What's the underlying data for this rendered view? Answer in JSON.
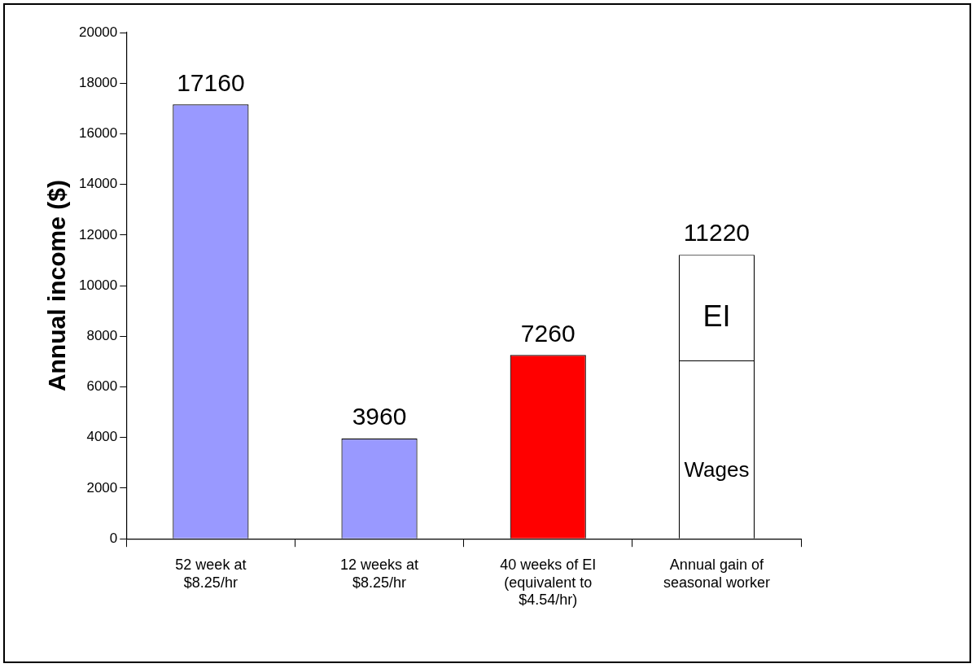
{
  "chart_data": {
    "type": "bar",
    "ylabel": "Annual income ($)",
    "categories": [
      "52 week at $8.25/hr",
      "12 weeks at $8.25/hr",
      "40 weeks of EI (equivalent to $4.54/hr)",
      "Annual gain of seasonal worker"
    ],
    "stacked": true,
    "series": [
      {
        "colors": [
          "#9999ff",
          "#9999ff",
          "#ff0000",
          "#ffffff"
        ],
        "values": [
          17160,
          3960,
          7260,
          7050
        ]
      },
      {
        "color": "#ffffff",
        "values": [
          null,
          null,
          null,
          4170
        ]
      }
    ],
    "totals": [
      "17160",
      "3960",
      "7260",
      "11220"
    ],
    "annotations": [
      "EI",
      "Wages"
    ],
    "ylim": [
      0,
      20000
    ],
    "yticks": [
      0,
      2000,
      4000,
      6000,
      8000,
      10000,
      12000,
      14000,
      16000,
      18000,
      20000
    ],
    "grid": false,
    "legend": false
  }
}
